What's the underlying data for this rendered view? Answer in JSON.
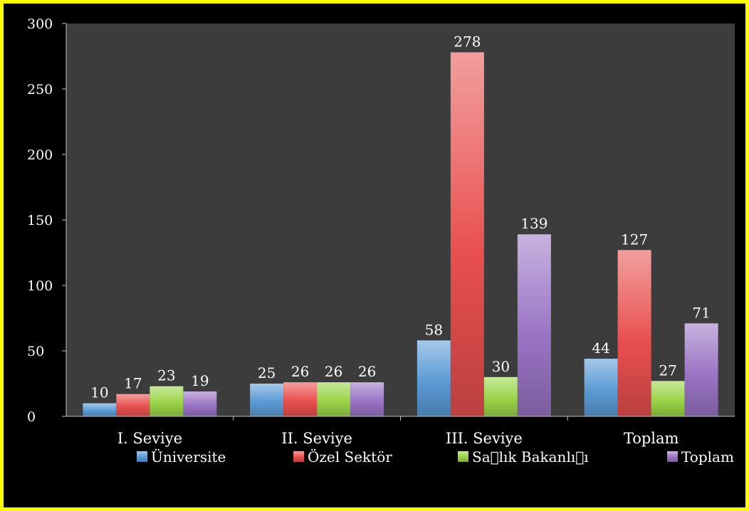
{
  "chart_data": {
    "type": "bar",
    "categories": [
      "I. Seviye",
      "II. Seviye",
      "III. Seviye",
      "Toplam"
    ],
    "series": [
      {
        "name": "Üniversite",
        "values": [
          10,
          25,
          58,
          44
        ],
        "color": "#5b9bd5"
      },
      {
        "name": "Özel Sektör",
        "values": [
          17,
          26,
          278,
          127
        ],
        "color": "#e8504f"
      },
      {
        "name": "Sa\u0000lık Bakanlı\u0000ı",
        "values": [
          23,
          26,
          30,
          27
        ],
        "color": "#9bd449"
      },
      {
        "name": "Toplam",
        "values": [
          19,
          26,
          139,
          71
        ],
        "color": "#9a74c4"
      }
    ],
    "yticks": [
      "0",
      "50",
      "100",
      "150",
      "200",
      "250",
      "300"
    ],
    "ylim": [
      0,
      300
    ],
    "grid": false,
    "legend_position": "bottom",
    "plot_background": "#3c3c3c",
    "frame_color": "#ffff00"
  }
}
